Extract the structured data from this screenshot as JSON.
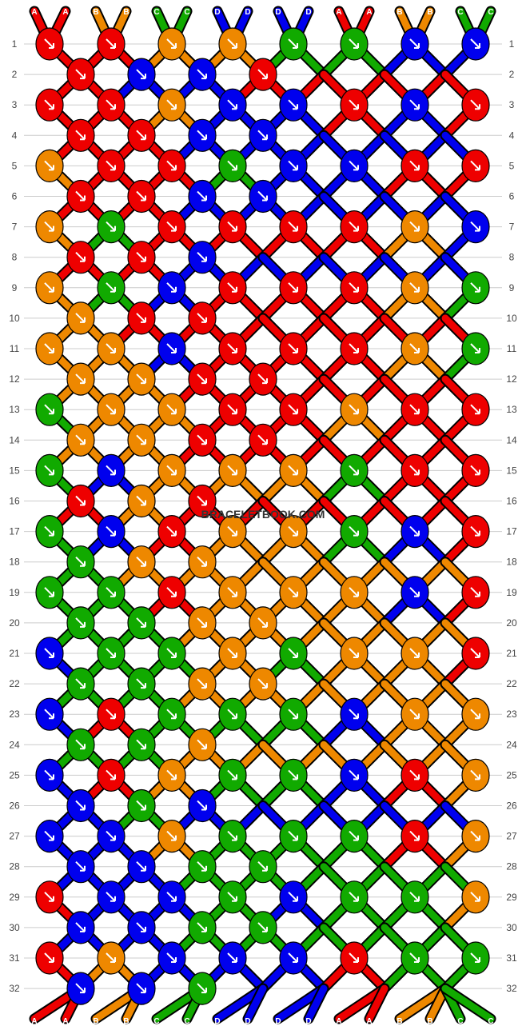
{
  "watermark": "BRACELETBOOK.COM",
  "strands_top": [
    "A",
    "A",
    "B",
    "B",
    "C",
    "C",
    "D",
    "D",
    "D",
    "D",
    "A",
    "A",
    "B",
    "B",
    "C",
    "C"
  ],
  "strands_bottom": [
    "A",
    "A",
    "B",
    "B",
    "C",
    "C",
    "D",
    "D",
    "D",
    "D",
    "A",
    "A",
    "B",
    "B",
    "C",
    "C"
  ],
  "colors": {
    "A": "#ee0000",
    "B": "#ee8800",
    "C": "#11aa00",
    "D": "#0000ee"
  },
  "row_labels": [
    "1",
    "2",
    "3",
    "4",
    "5",
    "6",
    "7",
    "8",
    "9",
    "10",
    "11",
    "12",
    "13",
    "14",
    "15",
    "16",
    "17",
    "18",
    "19",
    "20",
    "21",
    "22",
    "23",
    "24",
    "25",
    "26",
    "27",
    "28",
    "29",
    "30",
    "31",
    "32"
  ],
  "rows": [
    "AA BB CC DD AA BB CC",
    "A D D A",
    "AA BD DA DA BB CC",
    "A A D D",
    "BA AC DD AA DC CC",
    "A A D D",
    "BC AA AA BD DC",
    "A A D",
    "BC DA AA BC DD",
    "B A A",
    "BB DA AA BC DD",
    "B B A A",
    "CB BA AB AA DD",
    "B B A A",
    "CD BB BC AA",
    "A B A",
    "CD AB BC DA",
    "C B B",
    "CC AB BB DA",
    "C C B B",
    "DC CB CB BA",
    "C C B B",
    "DA CC CD BB",
    "C C B",
    "DA BC CD AB",
    "D C D",
    "DD BC CC AB",
    "D D C C",
    "AD DC DC CB",
    "D D C C",
    "AB DD DA CC",
    "D D C"
  ],
  "pattern_units": [
    "knot_grid_32_rows"
  ]
}
